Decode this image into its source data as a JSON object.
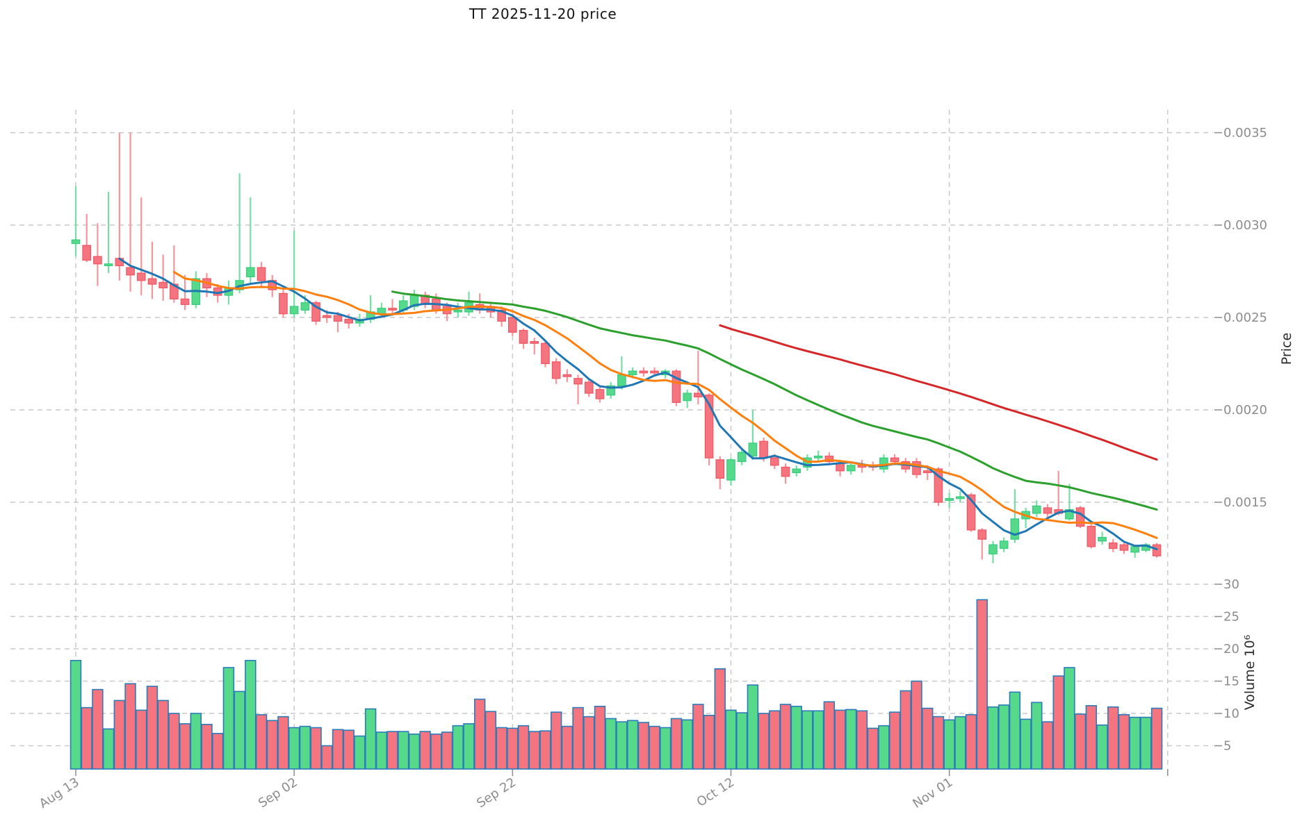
{
  "title": "TT  2025-11-20  price",
  "price_axis": {
    "label": "Price",
    "ticks": [
      0.0035,
      0.003,
      0.0025,
      0.002,
      0.0015
    ]
  },
  "volume_axis": {
    "label": "Volume 10⁶",
    "ticks": [
      30,
      25,
      20,
      15,
      10,
      5
    ]
  },
  "x_axis": {
    "tick_labels": [
      "Aug 13",
      "Sep 02",
      "Sep 22",
      "Oct 12",
      "Nov 01",
      ""
    ],
    "tick_day_indices": [
      0,
      20,
      40,
      60,
      80,
      100
    ]
  },
  "colors": {
    "background": "#ffffff",
    "grid": "#c9c9c9",
    "tick_text": "#8c8c8c",
    "axis_label_text": "#2b2b2b",
    "title_text": "#141414",
    "candle_up": "#57d98c",
    "candle_up_edge": "#35cc7a",
    "candle_down": "#f4757f",
    "candle_down_edge": "#f05560",
    "wick_up": "#76dfa3",
    "wick_down": "#f9949b",
    "volume_bar_edge": "#2b7bba",
    "ma_blue": "#1f77b4",
    "ma_orange": "#ff7f0e",
    "ma_green": "#2ca02c",
    "ma_red": "#d62728"
  },
  "chart_data": {
    "type": "candlestick+volume",
    "title": "TT  2025-11-20  price",
    "ylabel_price": "Price",
    "ylabel_volume": "Volume 10⁶",
    "grid": "dashed",
    "price_ylim": [
      0.0011,
      0.00362
    ],
    "volume_ylim_millions": [
      1.4,
      31.0
    ],
    "moving_averages": [
      {
        "name": "MA5",
        "period": 5,
        "color": "#1f77b4"
      },
      {
        "name": "MA10",
        "period": 10,
        "color": "#ff7f0e"
      },
      {
        "name": "MA30",
        "period": 30,
        "color": "#2ca02c"
      },
      {
        "name": "MA60",
        "period": 60,
        "color": "#d62728"
      }
    ],
    "dates": [
      "2025-08-13",
      "2025-08-14",
      "2025-08-15",
      "2025-08-16",
      "2025-08-17",
      "2025-08-18",
      "2025-08-19",
      "2025-08-20",
      "2025-08-21",
      "2025-08-22",
      "2025-08-23",
      "2025-08-24",
      "2025-08-25",
      "2025-08-26",
      "2025-08-27",
      "2025-08-28",
      "2025-08-29",
      "2025-08-30",
      "2025-08-31",
      "2025-09-01",
      "2025-09-02",
      "2025-09-03",
      "2025-09-04",
      "2025-09-05",
      "2025-09-06",
      "2025-09-07",
      "2025-09-08",
      "2025-09-09",
      "2025-09-10",
      "2025-09-11",
      "2025-09-12",
      "2025-09-13",
      "2025-09-14",
      "2025-09-15",
      "2025-09-16",
      "2025-09-17",
      "2025-09-18",
      "2025-09-19",
      "2025-09-20",
      "2025-09-21",
      "2025-09-22",
      "2025-09-23",
      "2025-09-24",
      "2025-09-25",
      "2025-09-26",
      "2025-09-27",
      "2025-09-28",
      "2025-09-29",
      "2025-09-30",
      "2025-10-01",
      "2025-10-02",
      "2025-10-03",
      "2025-10-04",
      "2025-10-05",
      "2025-10-06",
      "2025-10-07",
      "2025-10-08",
      "2025-10-09",
      "2025-10-10",
      "2025-10-11",
      "2025-10-12",
      "2025-10-13",
      "2025-10-14",
      "2025-10-15",
      "2025-10-16",
      "2025-10-17",
      "2025-10-18",
      "2025-10-19",
      "2025-10-20",
      "2025-10-21",
      "2025-10-22",
      "2025-10-23",
      "2025-10-24",
      "2025-10-25",
      "2025-10-26",
      "2025-10-27",
      "2025-10-28",
      "2025-10-29",
      "2025-10-30",
      "2025-10-31",
      "2025-11-01",
      "2025-11-02",
      "2025-11-03",
      "2025-11-04",
      "2025-11-05",
      "2025-11-06",
      "2025-11-07",
      "2025-11-08",
      "2025-11-09",
      "2025-11-10",
      "2025-11-11",
      "2025-11-12",
      "2025-11-13",
      "2025-11-14",
      "2025-11-15",
      "2025-11-16",
      "2025-11-17",
      "2025-11-18",
      "2025-11-19",
      "2025-11-20"
    ],
    "open": [
      0.0029,
      0.00289,
      0.00283,
      0.00278,
      0.00282,
      0.00277,
      0.00274,
      0.00271,
      0.00269,
      0.00268,
      0.0026,
      0.00257,
      0.00271,
      0.00266,
      0.00262,
      0.00265,
      0.00272,
      0.00277,
      0.0027,
      0.00263,
      0.00252,
      0.00254,
      0.00258,
      0.00251,
      0.00251,
      0.00249,
      0.00247,
      0.00249,
      0.00252,
      0.00255,
      0.00254,
      0.00256,
      0.00262,
      0.0026,
      0.00256,
      0.00253,
      0.00253,
      0.00257,
      0.00256,
      0.00254,
      0.0025,
      0.00243,
      0.00237,
      0.00236,
      0.00226,
      0.00219,
      0.00217,
      0.00215,
      0.00211,
      0.00208,
      0.00213,
      0.00219,
      0.00221,
      0.00221,
      0.00219,
      0.00221,
      0.00205,
      0.00209,
      0.00208,
      0.00173,
      0.00162,
      0.00172,
      0.00175,
      0.00183,
      0.00174,
      0.00169,
      0.00166,
      0.00169,
      0.00174,
      0.00175,
      0.00171,
      0.00167,
      0.0017,
      0.0017,
      0.00168,
      0.00174,
      0.00172,
      0.00172,
      0.00167,
      0.00168,
      0.00151,
      0.00152,
      0.00154,
      0.00135,
      0.00122,
      0.00125,
      0.0013,
      0.00141,
      0.00144,
      0.00147,
      0.00146,
      0.00141,
      0.00147,
      0.00137,
      0.00129,
      0.00128,
      0.00127,
      0.00123,
      0.00124,
      0.00127
    ],
    "high": [
      0.00321,
      0.00306,
      0.00301,
      0.00318,
      0.0035,
      0.0035,
      0.00315,
      0.00291,
      0.00284,
      0.00289,
      0.00273,
      0.00275,
      0.00274,
      0.00268,
      0.0027,
      0.00328,
      0.00315,
      0.0028,
      0.00273,
      0.00265,
      0.00297,
      0.00262,
      0.00259,
      0.00254,
      0.00253,
      0.00252,
      0.00252,
      0.00262,
      0.00258,
      0.0026,
      0.00262,
      0.00265,
      0.00264,
      0.00263,
      0.00258,
      0.00258,
      0.00264,
      0.00263,
      0.00258,
      0.00256,
      0.00252,
      0.00244,
      0.00239,
      0.00237,
      0.00228,
      0.00222,
      0.00219,
      0.00216,
      0.00213,
      0.00215,
      0.00229,
      0.00223,
      0.00223,
      0.00223,
      0.00222,
      0.00222,
      0.00211,
      0.00232,
      0.00209,
      0.00175,
      0.00174,
      0.00179,
      0.002,
      0.00185,
      0.00176,
      0.00171,
      0.0017,
      0.00176,
      0.00178,
      0.00177,
      0.00173,
      0.00172,
      0.00173,
      0.00172,
      0.00176,
      0.00176,
      0.00174,
      0.00174,
      0.0017,
      0.00169,
      0.00155,
      0.00156,
      0.00155,
      0.00136,
      0.00129,
      0.00131,
      0.00157,
      0.00147,
      0.00151,
      0.00149,
      0.00167,
      0.0016,
      0.00148,
      0.00138,
      0.00134,
      0.0013,
      0.00128,
      0.00127,
      0.00128,
      0.00128
    ],
    "low": [
      0.00283,
      0.0028,
      0.00267,
      0.00274,
      0.0027,
      0.00264,
      0.00262,
      0.0026,
      0.00259,
      0.00258,
      0.00254,
      0.00255,
      0.00261,
      0.00258,
      0.00257,
      0.00263,
      0.00268,
      0.00267,
      0.00261,
      0.0025,
      0.0025,
      0.00252,
      0.00246,
      0.00247,
      0.00242,
      0.00244,
      0.00245,
      0.00247,
      0.0025,
      0.00251,
      0.00252,
      0.00254,
      0.00255,
      0.00252,
      0.00248,
      0.0025,
      0.00251,
      0.00252,
      0.0025,
      0.00245,
      0.0024,
      0.00233,
      0.0023,
      0.00223,
      0.00214,
      0.00215,
      0.00203,
      0.00207,
      0.00204,
      0.00206,
      0.00211,
      0.00217,
      0.00218,
      0.00218,
      0.00217,
      0.00202,
      0.00201,
      0.00203,
      0.0017,
      0.00157,
      0.00159,
      0.0017,
      0.00173,
      0.00172,
      0.00168,
      0.0016,
      0.00164,
      0.00167,
      0.00172,
      0.0017,
      0.00164,
      0.00165,
      0.00166,
      0.00167,
      0.00166,
      0.0017,
      0.00166,
      0.00163,
      0.00162,
      0.00148,
      0.00147,
      0.0015,
      0.00134,
      0.00119,
      0.00117,
      0.00123,
      0.00128,
      0.00136,
      0.00142,
      0.00142,
      0.00143,
      0.0014,
      0.00136,
      0.00125,
      0.00127,
      0.00123,
      0.00122,
      0.0012,
      0.00123,
      0.0012
    ],
    "close": [
      0.00292,
      0.00281,
      0.00279,
      0.00279,
      0.00278,
      0.00273,
      0.0027,
      0.00268,
      0.00266,
      0.0026,
      0.00257,
      0.00271,
      0.00266,
      0.00262,
      0.00266,
      0.0027,
      0.00277,
      0.0027,
      0.00265,
      0.00252,
      0.00256,
      0.00258,
      0.00248,
      0.0025,
      0.00248,
      0.00247,
      0.00249,
      0.00253,
      0.00255,
      0.00254,
      0.00259,
      0.00262,
      0.00257,
      0.00254,
      0.00252,
      0.00254,
      0.00258,
      0.00254,
      0.00253,
      0.00248,
      0.00242,
      0.00236,
      0.00236,
      0.00225,
      0.00217,
      0.00218,
      0.00214,
      0.00209,
      0.00206,
      0.00213,
      0.00219,
      0.00221,
      0.0022,
      0.0022,
      0.00221,
      0.00204,
      0.00209,
      0.00207,
      0.00174,
      0.00163,
      0.00173,
      0.00177,
      0.00182,
      0.00174,
      0.0017,
      0.00164,
      0.00168,
      0.00174,
      0.00175,
      0.00172,
      0.00167,
      0.0017,
      0.00169,
      0.00169,
      0.00174,
      0.00172,
      0.00168,
      0.00165,
      0.00166,
      0.0015,
      0.00152,
      0.00153,
      0.00135,
      0.0013,
      0.00127,
      0.00129,
      0.00141,
      0.00145,
      0.00148,
      0.00144,
      0.00144,
      0.00146,
      0.00137,
      0.00126,
      0.00131,
      0.00125,
      0.00124,
      0.00126,
      0.00127,
      0.00121
    ],
    "volume_millions": [
      18.2,
      10.9,
      13.7,
      7.6,
      12.0,
      14.6,
      10.5,
      14.2,
      12.0,
      10.0,
      8.4,
      10.0,
      8.3,
      6.9,
      17.1,
      13.4,
      18.2,
      9.8,
      8.9,
      9.5,
      7.8,
      8.0,
      7.8,
      5.0,
      7.5,
      7.4,
      6.5,
      10.7,
      7.1,
      7.2,
      7.2,
      6.8,
      7.2,
      6.8,
      7.1,
      8.1,
      8.4,
      12.2,
      10.3,
      7.8,
      7.7,
      8.1,
      7.2,
      7.3,
      10.2,
      8.0,
      10.9,
      9.5,
      11.1,
      9.2,
      8.7,
      8.9,
      8.6,
      8.0,
      7.8,
      9.2,
      9.0,
      11.4,
      9.7,
      16.9,
      10.5,
      10.1,
      14.4,
      10.0,
      10.4,
      11.4,
      11.1,
      10.4,
      10.4,
      11.8,
      10.5,
      10.6,
      10.4,
      7.7,
      8.1,
      10.2,
      13.5,
      15.0,
      10.8,
      9.5,
      9.0,
      9.5,
      9.8,
      27.6,
      11.0,
      11.3,
      13.3,
      9.1,
      11.7,
      8.7,
      15.8,
      17.1,
      9.9,
      11.2,
      8.2,
      11.0,
      9.8,
      9.4,
      9.4,
      10.8
    ]
  }
}
